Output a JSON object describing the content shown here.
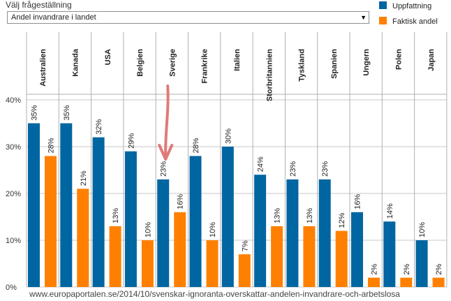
{
  "control": {
    "title": "Välj frågeställning",
    "selected": "Andel invandrare i landet"
  },
  "colors": {
    "uppfattning": "#0066a1",
    "faktisk": "#ff8000",
    "arrow": "#e07a7a"
  },
  "footer": {
    "url": "www.europaportalen.se/2014/10/svenskar-ignoranta-overskattar-andelen-invandrare-och-arbetslosa"
  },
  "chart_data": {
    "type": "bar",
    "categories": [
      "Australien",
      "Kanada",
      "USA",
      "Belgien",
      "Sverige",
      "Frankrike",
      "Italien",
      "Storbritannien",
      "Tyskland",
      "Spanien",
      "Ungern",
      "Polen",
      "Japan"
    ],
    "series": [
      {
        "name": "Uppfattning",
        "values": [
          35,
          35,
          32,
          29,
          23,
          28,
          30,
          24,
          23,
          23,
          16,
          14,
          10
        ],
        "labels": [
          "35%",
          "35%",
          "32%",
          "29%",
          "23%",
          "28%",
          "30%",
          "24%",
          "23%",
          "23%",
          "16%",
          "14%",
          "10%"
        ]
      },
      {
        "name": "Faktisk andel",
        "values": [
          28,
          21,
          13,
          10,
          16,
          10,
          7,
          13,
          13,
          12,
          2,
          2,
          2
        ],
        "labels": [
          "28%",
          "21%",
          "13%",
          "10%",
          "16%",
          "10%",
          "7%",
          "13%",
          "13%",
          "12%",
          "2%",
          "2%",
          "2%"
        ]
      }
    ],
    "yticks": [
      "0%",
      "10%",
      "20%",
      "30%",
      "40%"
    ],
    "ylim": [
      0,
      40
    ],
    "highlight": "Sverige",
    "legend_position": "top-right"
  }
}
